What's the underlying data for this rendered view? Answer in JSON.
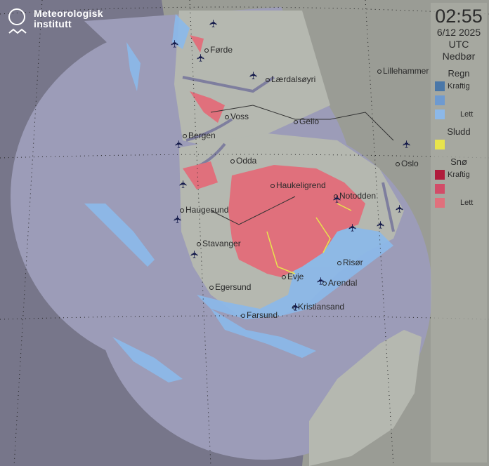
{
  "logo": {
    "name_line1": "Meteorologisk",
    "name_line2": "institutt"
  },
  "legend": {
    "time": "02:55",
    "date": "6/12 2025",
    "timezone": "UTC",
    "title": "Nedbør",
    "sections": [
      {
        "label": "Regn",
        "items": [
          {
            "color": "#4a77a8",
            "label": "Kraftig"
          },
          {
            "color": "#6e9ad0",
            "label": ""
          },
          {
            "color": "#8cb8e8",
            "label": "Lett"
          }
        ]
      },
      {
        "label": "Sludd",
        "items": [
          {
            "color": "#e8e44c",
            "label": ""
          }
        ]
      },
      {
        "label": "Snø",
        "items": [
          {
            "color": "#b01c3c",
            "label": "Kraftig"
          },
          {
            "color": "#d24c68",
            "label": ""
          },
          {
            "color": "#e0707c",
            "label": "Lett"
          }
        ]
      }
    ]
  },
  "cities": [
    "Førde",
    "Lærdalsøyri",
    "Voss",
    "Bergen",
    "Geilo",
    "Odda",
    "Haukeligrend",
    "Notodden",
    "Oslo",
    "Lillehammer",
    "Haugesund",
    "Stavanger",
    "Egersund",
    "Evje",
    "Risør",
    "Arendal",
    "Kristiansand",
    "Farsund"
  ],
  "icons": {
    "airport": "airplane-icon",
    "logo": "met-logo-icon"
  }
}
